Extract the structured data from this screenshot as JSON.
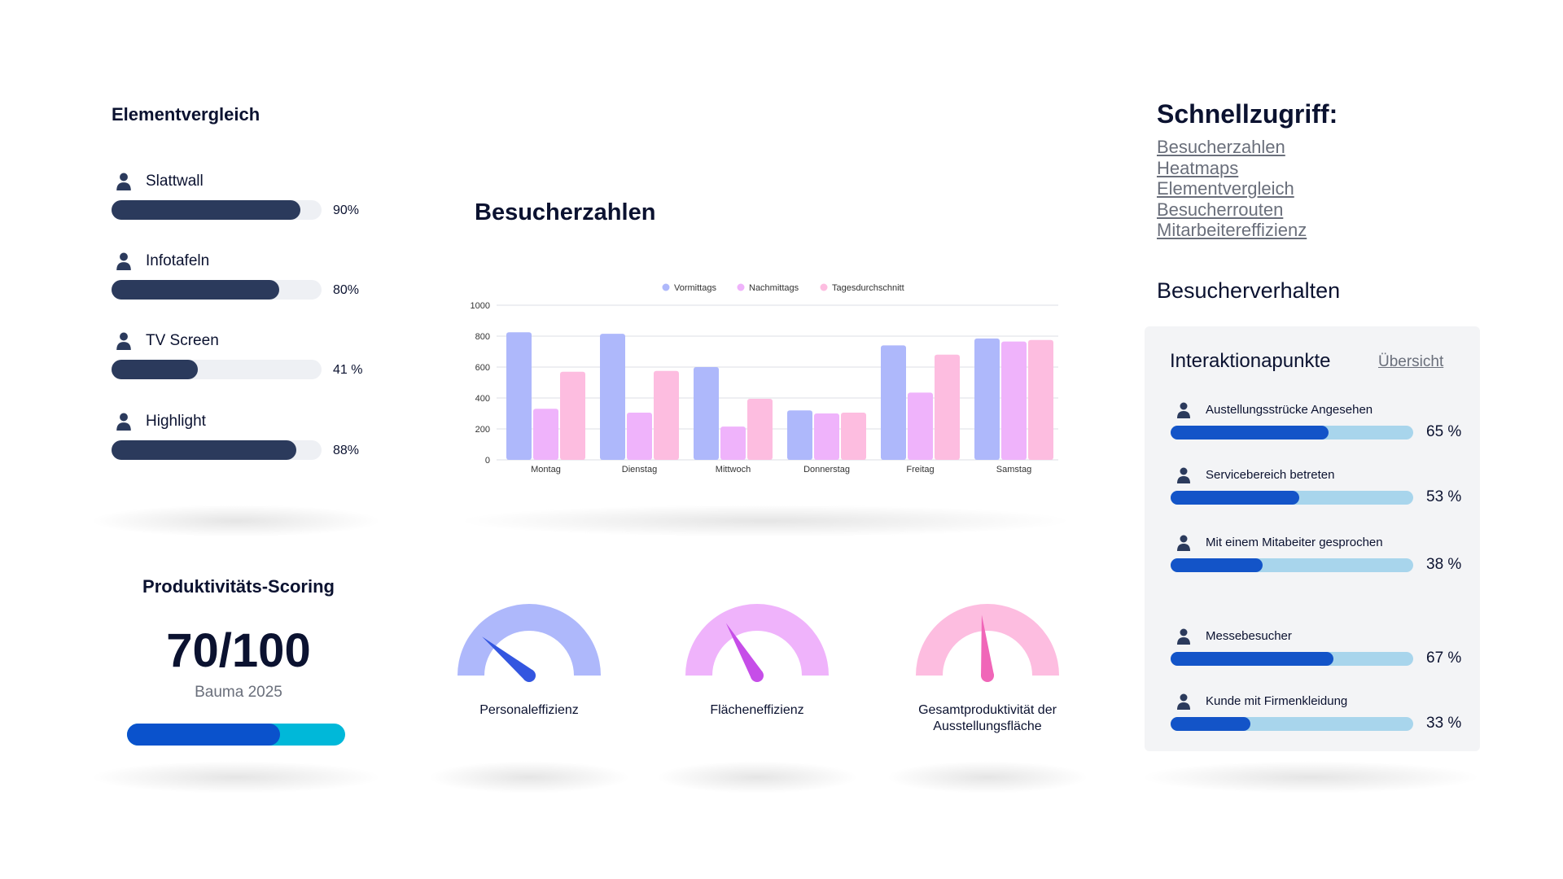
{
  "elementvergleich": {
    "title": "Elementvergleich",
    "items": [
      {
        "label": "Slattwall",
        "value": 90,
        "pct_text": "90%"
      },
      {
        "label": "Infotafeln",
        "value": 80,
        "pct_text": "80%"
      },
      {
        "label": "TV Screen",
        "value": 41,
        "pct_text": "41 %"
      },
      {
        "label": "Highlight",
        "value": 88,
        "pct_text": "88%"
      }
    ]
  },
  "besucherzahlen": {
    "title": "Besucherzahlen"
  },
  "chart_data": {
    "type": "bar",
    "categories": [
      "Montag",
      "Dienstag",
      "Mittwoch",
      "Donnerstag",
      "Freitag",
      "Samstag"
    ],
    "series": [
      {
        "name": "Vormittags",
        "color": "#aeb8fb",
        "values": [
          825,
          815,
          600,
          320,
          740,
          785
        ]
      },
      {
        "name": "Nachmittags",
        "color": "#efb3fb",
        "values": [
          330,
          305,
          215,
          300,
          435,
          765
        ]
      },
      {
        "name": "Tagesdurchschnitt",
        "color": "#fdbde0",
        "values": [
          570,
          575,
          395,
          305,
          680,
          775
        ]
      }
    ],
    "ylim": [
      0,
      1000
    ],
    "yticks": [
      0,
      200,
      400,
      600,
      800,
      1000
    ],
    "grid": true,
    "legend": "top-center",
    "title": "",
    "xlabel": "",
    "ylabel": ""
  },
  "schnellzugriff": {
    "title": "Schnellzugriff:",
    "links": [
      "Besucherzahlen",
      "Heatmaps",
      "Elementvergleich",
      "Besucherrouten",
      "Mitarbeitereffizienz"
    ]
  },
  "besucherverhalten": {
    "title": "Besucherverhalten"
  },
  "interaktion": {
    "title": "Interaktionapunkte",
    "link": "Übersicht",
    "items": [
      {
        "label": "Austellungsstrücke Angesehen",
        "value": 65,
        "pct_text": "65 %"
      },
      {
        "label": "Servicebereich betreten",
        "value": 53,
        "pct_text": "53 %"
      },
      {
        "label": "Mit einem Mitabeiter gesprochen",
        "value": 38,
        "pct_text": "38 %"
      },
      {
        "label": "Messebesucher",
        "value": 67,
        "pct_text": "67 %"
      },
      {
        "label": "Kunde mit Firmenkleidung",
        "value": 33,
        "pct_text": "33 %"
      }
    ]
  },
  "scoring": {
    "title": "Produktivitäts-Scoring",
    "score": "70/100",
    "event": "Bauma 2025",
    "value": 70
  },
  "gauges": [
    {
      "label": "Personaleffizienz",
      "value": 22,
      "arc_color": "#aeb8fb",
      "needle_color": "#3356e0"
    },
    {
      "label": "Flächeneffizienz",
      "value": 33,
      "arc_color": "#efb3fb",
      "needle_color": "#c64ee8"
    },
    {
      "label": "Gesamtproduktivität der Ausstellungsfläche",
      "value": 47,
      "arc_color": "#fdbde0",
      "needle_color": "#f066b8"
    }
  ],
  "colors": {
    "dark_bar": "#2b3a5c",
    "track_light": "#eef0f4",
    "blue_fill": "#1354c8",
    "light_blue_track": "#a8d5ec",
    "score_cyan": "#00b8d9",
    "score_blue": "#0a52cc"
  },
  "icons": {
    "person": "person-icon"
  }
}
